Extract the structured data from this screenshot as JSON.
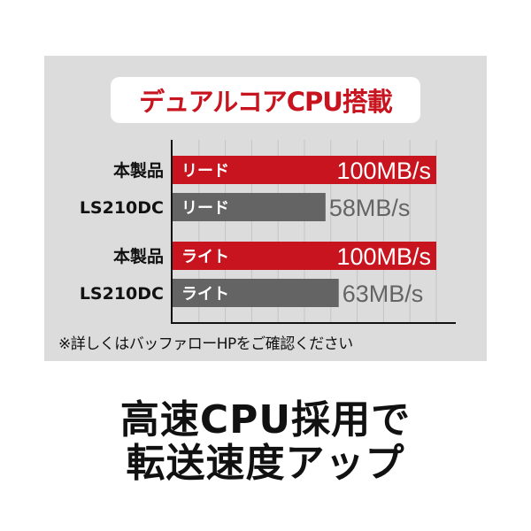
{
  "title": "デュアルコアCPU搭載",
  "footnote": "※詳しくはバッファローHPをご確認ください",
  "headline": [
    "高速CPU採用で",
    "転送速度アップ"
  ],
  "colors": {
    "this_product": "#c8141e",
    "ls210dc": "#646464",
    "panel": "#dcdcdc"
  },
  "chart_data": {
    "type": "bar",
    "orientation": "horizontal",
    "unit": "MB/s",
    "xlim": [
      0,
      100
    ],
    "grid": true,
    "bars": [
      {
        "product": "本製品",
        "label": "リード",
        "value": 100,
        "value_label": "100MB/s",
        "color": "#c8141e"
      },
      {
        "product": "LS210DC",
        "label": "リード",
        "value": 58,
        "value_label": "58MB/s",
        "color": "#646464"
      },
      {
        "product": "本製品",
        "label": "ライト",
        "value": 100,
        "value_label": "100MB/s",
        "color": "#c8141e"
      },
      {
        "product": "LS210DC",
        "label": "ライト",
        "value": 63,
        "value_label": "63MB/s",
        "color": "#646464"
      }
    ]
  }
}
